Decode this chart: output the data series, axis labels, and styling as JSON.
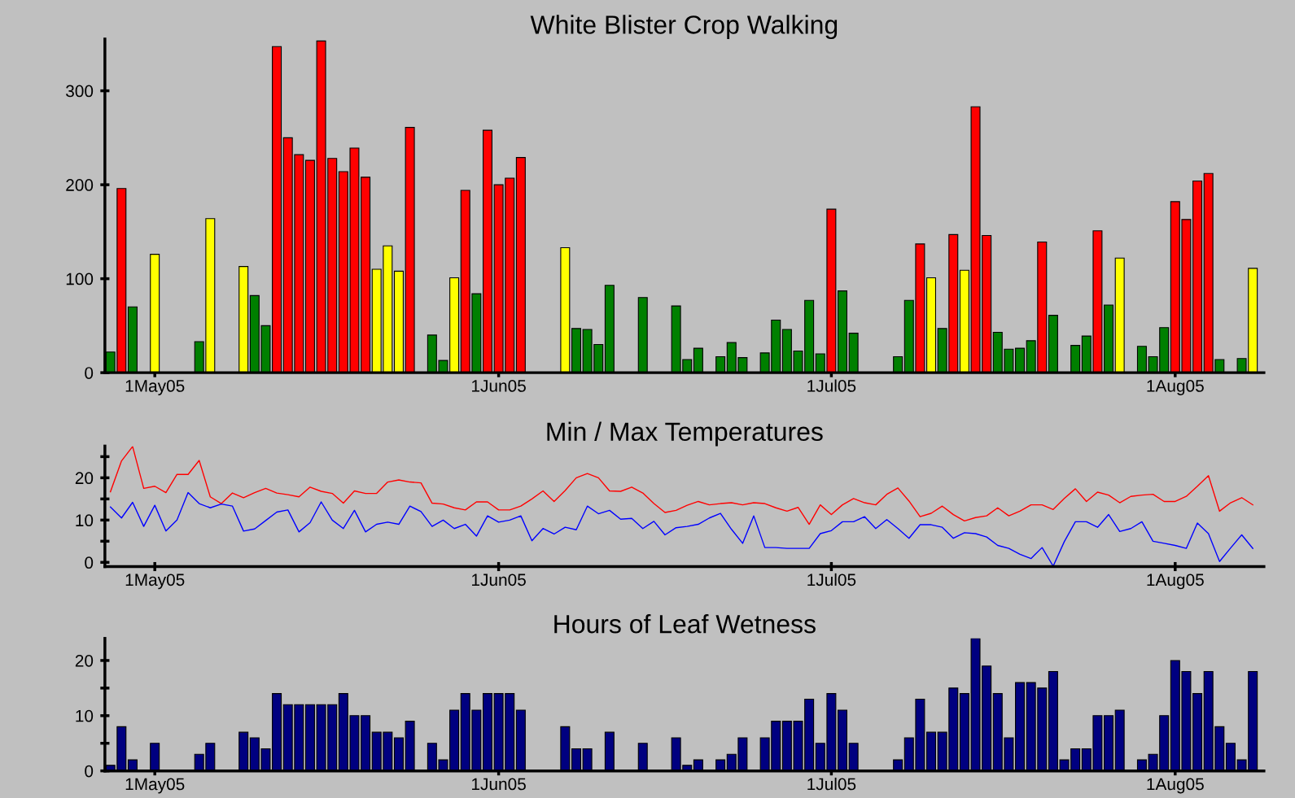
{
  "chart_data": [
    {
      "type": "bar",
      "title": "White Blister Crop Walking",
      "x": [
        "2005-04-27",
        "2005-04-28",
        "2005-04-29",
        "2005-05-01",
        "2005-05-05",
        "2005-05-06",
        "2005-05-09",
        "2005-05-10",
        "2005-05-11",
        "2005-05-12",
        "2005-05-13",
        "2005-05-14",
        "2005-05-15",
        "2005-05-16",
        "2005-05-17",
        "2005-05-18",
        "2005-05-19",
        "2005-05-20",
        "2005-05-21",
        "2005-05-22",
        "2005-05-23",
        "2005-05-24",
        "2005-05-26",
        "2005-05-27",
        "2005-05-28",
        "2005-05-29",
        "2005-05-30",
        "2005-05-31",
        "2005-06-01",
        "2005-06-02",
        "2005-06-03",
        "2005-06-07",
        "2005-06-08",
        "2005-06-09",
        "2005-06-10",
        "2005-06-11",
        "2005-06-14",
        "2005-06-17",
        "2005-06-18",
        "2005-06-19",
        "2005-06-21",
        "2005-06-22",
        "2005-06-23",
        "2005-06-25",
        "2005-06-26",
        "2005-06-27",
        "2005-06-28",
        "2005-06-29",
        "2005-06-30",
        "2005-07-01",
        "2005-07-02",
        "2005-07-03",
        "2005-07-07",
        "2005-07-08",
        "2005-07-09",
        "2005-07-10",
        "2005-07-11",
        "2005-07-12",
        "2005-07-13",
        "2005-07-14",
        "2005-07-15",
        "2005-07-16",
        "2005-07-17",
        "2005-07-18",
        "2005-07-19",
        "2005-07-20",
        "2005-07-21",
        "2005-07-23",
        "2005-07-24",
        "2005-07-25",
        "2005-07-26",
        "2005-07-27",
        "2005-07-29",
        "2005-07-30",
        "2005-07-31",
        "2005-08-01",
        "2005-08-02",
        "2005-08-03",
        "2005-08-04",
        "2005-08-05",
        "2005-08-07",
        "2005-08-08"
      ],
      "values": [
        22,
        196,
        70,
        126,
        33,
        164,
        113,
        82,
        50,
        347,
        250,
        232,
        226,
        353,
        228,
        214,
        239,
        208,
        110,
        135,
        108,
        261,
        40,
        13,
        101,
        194,
        84,
        258,
        200,
        207,
        229,
        133,
        47,
        46,
        30,
        93,
        80,
        71,
        14,
        26,
        17,
        32,
        16,
        21,
        56,
        46,
        23,
        77,
        20,
        174,
        87,
        42,
        17,
        77,
        137,
        101,
        47,
        147,
        109,
        283,
        146,
        43,
        25,
        26,
        34,
        139,
        61,
        29,
        39,
        151,
        72,
        122,
        28,
        17,
        48,
        182,
        163,
        204,
        212,
        14,
        15,
        111
      ],
      "colors": [
        "#008000",
        "#ff0000",
        "#008000",
        "#ffff00",
        "#008000",
        "#ffff00",
        "#ffff00",
        "#008000",
        "#008000",
        "#ff0000",
        "#ff0000",
        "#ff0000",
        "#ff0000",
        "#ff0000",
        "#ff0000",
        "#ff0000",
        "#ff0000",
        "#ff0000",
        "#ffff00",
        "#ffff00",
        "#ffff00",
        "#ff0000",
        "#008000",
        "#008000",
        "#ffff00",
        "#ff0000",
        "#008000",
        "#ff0000",
        "#ff0000",
        "#ff0000",
        "#ff0000",
        "#ffff00",
        "#008000",
        "#008000",
        "#008000",
        "#008000",
        "#008000",
        "#008000",
        "#008000",
        "#008000",
        "#008000",
        "#008000",
        "#008000",
        "#008000",
        "#008000",
        "#008000",
        "#008000",
        "#008000",
        "#008000",
        "#ff0000",
        "#008000",
        "#008000",
        "#008000",
        "#008000",
        "#ff0000",
        "#ffff00",
        "#008000",
        "#ff0000",
        "#ffff00",
        "#ff0000",
        "#ff0000",
        "#008000",
        "#008000",
        "#008000",
        "#008000",
        "#ff0000",
        "#008000",
        "#008000",
        "#008000",
        "#ff0000",
        "#008000",
        "#ffff00",
        "#008000",
        "#008000",
        "#008000",
        "#ff0000",
        "#ff0000",
        "#ff0000",
        "#ff0000",
        "#008000",
        "#008000",
        "#ffff00"
      ],
      "xlim": [
        "2005-04-26T12:00",
        "2005-08-09"
      ],
      "xticks": [
        {
          "value": "2005-05-01",
          "label": "1May05"
        },
        {
          "value": "2005-06-01",
          "label": "1Jun05"
        },
        {
          "value": "2005-07-01",
          "label": "1Jul05"
        },
        {
          "value": "2005-08-01",
          "label": "1Aug05"
        }
      ],
      "ylim": [
        0,
        355
      ],
      "yticks": [
        0,
        100,
        200,
        300
      ],
      "grid": false,
      "legend": false
    },
    {
      "type": "line",
      "title": "Min / Max Temperatures",
      "x": [
        "2005-04-27",
        "2005-04-28",
        "2005-04-29",
        "2005-04-30",
        "2005-05-01",
        "2005-05-02",
        "2005-05-03",
        "2005-05-04",
        "2005-05-05",
        "2005-05-06",
        "2005-05-07",
        "2005-05-08",
        "2005-05-09",
        "2005-05-10",
        "2005-05-11",
        "2005-05-12",
        "2005-05-13",
        "2005-05-14",
        "2005-05-15",
        "2005-05-16",
        "2005-05-17",
        "2005-05-18",
        "2005-05-19",
        "2005-05-20",
        "2005-05-21",
        "2005-05-22",
        "2005-05-23",
        "2005-05-24",
        "2005-05-25",
        "2005-05-26",
        "2005-05-27",
        "2005-05-28",
        "2005-05-29",
        "2005-05-30",
        "2005-05-31",
        "2005-06-01",
        "2005-06-02",
        "2005-06-03",
        "2005-06-04",
        "2005-06-05",
        "2005-06-06",
        "2005-06-07",
        "2005-06-08",
        "2005-06-09",
        "2005-06-10",
        "2005-06-11",
        "2005-06-12",
        "2005-06-13",
        "2005-06-14",
        "2005-06-15",
        "2005-06-16",
        "2005-06-17",
        "2005-06-18",
        "2005-06-19",
        "2005-06-20",
        "2005-06-21",
        "2005-06-22",
        "2005-06-23",
        "2005-06-24",
        "2005-06-25",
        "2005-06-26",
        "2005-06-27",
        "2005-06-28",
        "2005-06-29",
        "2005-06-30",
        "2005-07-01",
        "2005-07-02",
        "2005-07-03",
        "2005-07-04",
        "2005-07-05",
        "2005-07-06",
        "2005-07-07",
        "2005-07-08",
        "2005-07-09",
        "2005-07-10",
        "2005-07-11",
        "2005-07-12",
        "2005-07-13",
        "2005-07-14",
        "2005-07-15",
        "2005-07-16",
        "2005-07-17",
        "2005-07-18",
        "2005-07-19",
        "2005-07-20",
        "2005-07-21",
        "2005-07-22",
        "2005-07-23",
        "2005-07-24",
        "2005-07-25",
        "2005-07-26",
        "2005-07-27",
        "2005-07-28",
        "2005-07-29",
        "2005-07-30",
        "2005-07-31",
        "2005-08-01",
        "2005-08-02",
        "2005-08-03",
        "2005-08-04",
        "2005-08-05",
        "2005-08-06",
        "2005-08-07",
        "2005-08-08"
      ],
      "series": [
        {
          "color": "#ff0000",
          "values": [
            16.7,
            24.0,
            27.4,
            17.5,
            18.0,
            16.5,
            20.8,
            20.8,
            24.1,
            15.5,
            13.9,
            16.4,
            15.3,
            16.5,
            17.5,
            16.4,
            16.0,
            15.5,
            17.8,
            16.8,
            16.3,
            14.0,
            16.9,
            16.3,
            16.3,
            19.0,
            19.5,
            19.0,
            18.8,
            14.0,
            13.8,
            12.9,
            12.4,
            14.3,
            14.3,
            12.4,
            12.4,
            13.3,
            15.0,
            16.9,
            14.4,
            17.0,
            20.0,
            21.0,
            20.0,
            16.9,
            16.8,
            17.8,
            16.4,
            13.9,
            11.8,
            12.3,
            13.5,
            14.4,
            13.6,
            13.9,
            14.1,
            13.6,
            14.1,
            13.9,
            12.9,
            12.1,
            13.0,
            9.0,
            13.6,
            11.3,
            13.6,
            15.1,
            14.1,
            13.6,
            16.1,
            17.6,
            14.5,
            10.8,
            11.6,
            13.3,
            11.3,
            9.8,
            10.6,
            11.0,
            12.9,
            11.0,
            12.1,
            13.6,
            13.6,
            12.5,
            15.1,
            17.4,
            14.4,
            16.6,
            15.9,
            14.1,
            15.6,
            15.9,
            16.1,
            14.4,
            14.4,
            15.6,
            18.0,
            20.5,
            12.1,
            14.1,
            15.3,
            13.6
          ]
        },
        {
          "color": "#0000ff",
          "values": [
            13.1,
            10.5,
            14.2,
            8.5,
            13.5,
            7.4,
            10.0,
            16.5,
            13.9,
            12.9,
            13.8,
            13.3,
            7.4,
            7.9,
            9.9,
            11.9,
            12.4,
            7.2,
            9.4,
            14.3,
            10.0,
            8.0,
            12.3,
            7.2,
            9.0,
            9.5,
            9.0,
            13.3,
            12.0,
            8.5,
            10.0,
            8.0,
            9.0,
            6.2,
            11.0,
            9.5,
            10.0,
            11.0,
            5.1,
            8.0,
            6.7,
            8.3,
            7.7,
            13.3,
            11.5,
            12.3,
            10.2,
            10.4,
            8.0,
            9.7,
            6.5,
            8.2,
            8.5,
            9.0,
            10.5,
            11.6,
            7.8,
            4.5,
            11.0,
            3.5,
            3.5,
            3.3,
            3.3,
            3.3,
            6.8,
            7.5,
            9.6,
            9.6,
            10.8,
            8.0,
            10.1,
            8.0,
            5.7,
            8.9,
            8.9,
            8.3,
            5.7,
            7.0,
            6.8,
            6.0,
            4.0,
            3.3,
            1.9,
            0.9,
            3.5,
            -0.9,
            4.9,
            9.6,
            9.6,
            8.3,
            11.3,
            7.3,
            8.0,
            9.6,
            5.0,
            4.5,
            4.0,
            3.3,
            9.3,
            6.8,
            0.2,
            3.4,
            6.5,
            3.3
          ]
        }
      ],
      "xlim": [
        "2005-04-26T12:00",
        "2005-08-09"
      ],
      "xticks": [
        {
          "value": "2005-05-01",
          "label": "1May05"
        },
        {
          "value": "2005-06-01",
          "label": "1Jun05"
        },
        {
          "value": "2005-07-01",
          "label": "1Jul05"
        },
        {
          "value": "2005-08-01",
          "label": "1Aug05"
        }
      ],
      "ylim": [
        -1,
        27.5
      ],
      "yticks": [
        0,
        {
          "value": 5,
          "label": null
        },
        10,
        {
          "value": 15,
          "label": null
        },
        20,
        {
          "value": 25,
          "label": null
        }
      ],
      "grid": false,
      "legend": false,
      "marker": "none",
      "line_style": "solid"
    },
    {
      "type": "bar",
      "title": "Hours of Leaf Wetness",
      "x": [
        "2005-04-27",
        "2005-04-28",
        "2005-04-29",
        "2005-05-01",
        "2005-05-05",
        "2005-05-06",
        "2005-05-09",
        "2005-05-10",
        "2005-05-11",
        "2005-05-12",
        "2005-05-13",
        "2005-05-14",
        "2005-05-15",
        "2005-05-16",
        "2005-05-17",
        "2005-05-18",
        "2005-05-19",
        "2005-05-20",
        "2005-05-21",
        "2005-05-22",
        "2005-05-23",
        "2005-05-24",
        "2005-05-26",
        "2005-05-27",
        "2005-05-28",
        "2005-05-29",
        "2005-05-30",
        "2005-05-31",
        "2005-06-01",
        "2005-06-02",
        "2005-06-03",
        "2005-06-07",
        "2005-06-08",
        "2005-06-09",
        "2005-06-11",
        "2005-06-14",
        "2005-06-17",
        "2005-06-18",
        "2005-06-19",
        "2005-06-21",
        "2005-06-22",
        "2005-06-23",
        "2005-06-25",
        "2005-06-26",
        "2005-06-27",
        "2005-06-28",
        "2005-06-29",
        "2005-06-30",
        "2005-07-01",
        "2005-07-02",
        "2005-07-03",
        "2005-07-07",
        "2005-07-08",
        "2005-07-09",
        "2005-07-10",
        "2005-07-11",
        "2005-07-12",
        "2005-07-13",
        "2005-07-14",
        "2005-07-15",
        "2005-07-16",
        "2005-07-17",
        "2005-07-18",
        "2005-07-19",
        "2005-07-20",
        "2005-07-21",
        "2005-07-22",
        "2005-07-23",
        "2005-07-24",
        "2005-07-25",
        "2005-07-26",
        "2005-07-27",
        "2005-07-29",
        "2005-07-30",
        "2005-07-31",
        "2005-08-01",
        "2005-08-02",
        "2005-08-03",
        "2005-08-04",
        "2005-08-05",
        "2005-08-06",
        "2005-08-07",
        "2005-08-08"
      ],
      "values": [
        1,
        8,
        2,
        5,
        3,
        5,
        7,
        6,
        4,
        14,
        12,
        12,
        12,
        12,
        12,
        14,
        10,
        10,
        7,
        7,
        6,
        9,
        5,
        2,
        11,
        14,
        11,
        14,
        14,
        14,
        11,
        8,
        4,
        4,
        7,
        5,
        6,
        1,
        2,
        2,
        3,
        6,
        6,
        9,
        9,
        9,
        13,
        5,
        14,
        11,
        5,
        2,
        6,
        13,
        7,
        7,
        15,
        14,
        24,
        19,
        14,
        6,
        16,
        16,
        15,
        18,
        2,
        4,
        4,
        10,
        10,
        11,
        2,
        3,
        10,
        20,
        18,
        14,
        18,
        8,
        5,
        2,
        18
      ],
      "color": "#000080",
      "xlim": [
        "2005-04-26T12:00",
        "2005-08-09"
      ],
      "xticks": [
        {
          "value": "2005-05-01",
          "label": "1May05"
        },
        {
          "value": "2005-06-01",
          "label": "1Jun05"
        },
        {
          "value": "2005-07-01",
          "label": "1Jul05"
        },
        {
          "value": "2005-08-01",
          "label": "1Aug05"
        }
      ],
      "ylim": [
        0,
        24
      ],
      "yticks": [
        0,
        {
          "value": 5,
          "label": null
        },
        10,
        {
          "value": 15,
          "label": null
        },
        20
      ],
      "grid": false,
      "legend": false
    }
  ]
}
